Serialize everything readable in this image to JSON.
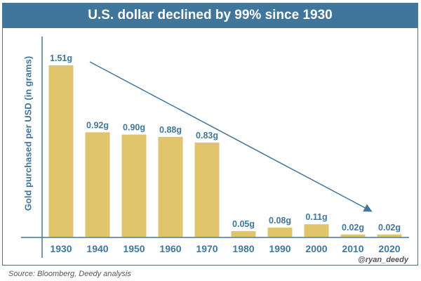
{
  "chart_data": {
    "type": "bar",
    "title": "U.S. dollar declined by 99% since 1930",
    "ylabel": "Gold purchased per USD (in grams)",
    "xlabel": "",
    "categories": [
      "1930",
      "1940",
      "1950",
      "1960",
      "1970",
      "1980",
      "1990",
      "2000",
      "2010",
      "2020"
    ],
    "values": [
      1.51,
      0.92,
      0.9,
      0.88,
      0.83,
      0.05,
      0.08,
      0.11,
      0.02,
      0.02
    ],
    "data_labels": [
      "1.51g",
      "0.92g",
      "0.90g",
      "0.88g",
      "0.83g",
      "0.05g",
      "0.08g",
      "0.11g",
      "0.02g",
      "0.02g"
    ],
    "ylim": [
      0,
      1.6
    ],
    "grid": false,
    "annotations": [
      "downward trend arrow from 1940 to 2020"
    ],
    "colors": {
      "bar": "#e0c46c",
      "accent": "#41769c"
    }
  },
  "watermark": "@ryan_deedy",
  "source": "Source: Bloomberg, Deedy analysis"
}
